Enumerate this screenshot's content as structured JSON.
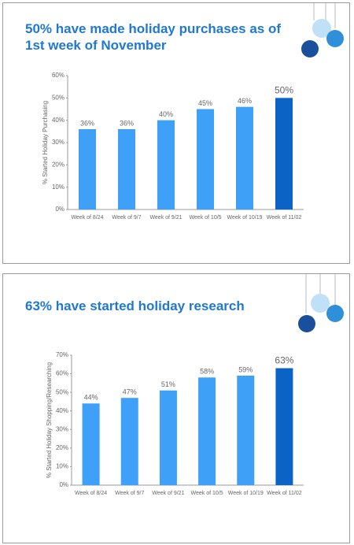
{
  "chart_data": [
    {
      "type": "bar",
      "title": "50% have made holiday purchases as of 1st week of November",
      "y_label": "% Started Holiday Purchasing",
      "categories": [
        "Week of 8/24",
        "Week of 9/7",
        "Week of 9/21",
        "Week of 10/5",
        "Week of 10/19",
        "Week of 11/02"
      ],
      "values": [
        36,
        36,
        40,
        45,
        46,
        50
      ],
      "value_labels": [
        "36%",
        "36%",
        "40%",
        "45%",
        "46%",
        "50%"
      ],
      "colors": [
        "#3fa0f7",
        "#3fa0f7",
        "#3fa0f7",
        "#3fa0f7",
        "#3fa0f7",
        "#0b63c6"
      ],
      "ylim": [
        0,
        60
      ],
      "yticks": [
        {
          "value": 0,
          "label": "0%"
        },
        {
          "value": 10,
          "label": "10%"
        },
        {
          "value": 20,
          "label": "20%"
        },
        {
          "value": 30,
          "label": "30%"
        },
        {
          "value": 40,
          "label": "40%"
        },
        {
          "value": 50,
          "label": "50%"
        },
        {
          "value": 60,
          "label": "60%"
        }
      ]
    },
    {
      "type": "bar",
      "title": "63% have started holiday research",
      "y_label": "% Started Holiday Shopping/Researching",
      "categories": [
        "Week of 8/24",
        "Week of 9/7",
        "Week of 9/21",
        "Week of 10/5",
        "Week of 10/19",
        "Week of 11/02"
      ],
      "values": [
        44,
        47,
        51,
        58,
        59,
        63
      ],
      "value_labels": [
        "44%",
        "47%",
        "51%",
        "58%",
        "59%",
        "63%"
      ],
      "colors": [
        "#3fa0f7",
        "#3fa0f7",
        "#3fa0f7",
        "#3fa0f7",
        "#3fa0f7",
        "#0b63c6"
      ],
      "ylim": [
        0,
        70
      ],
      "yticks": [
        {
          "value": 0,
          "label": "0%"
        },
        {
          "value": 10,
          "label": "10%"
        },
        {
          "value": 20,
          "label": "20%"
        },
        {
          "value": 30,
          "label": "30%"
        },
        {
          "value": 40,
          "label": "40%"
        },
        {
          "value": 50,
          "label": "50%"
        },
        {
          "value": 60,
          "label": "60%"
        },
        {
          "value": 70,
          "label": "70%"
        }
      ]
    }
  ]
}
